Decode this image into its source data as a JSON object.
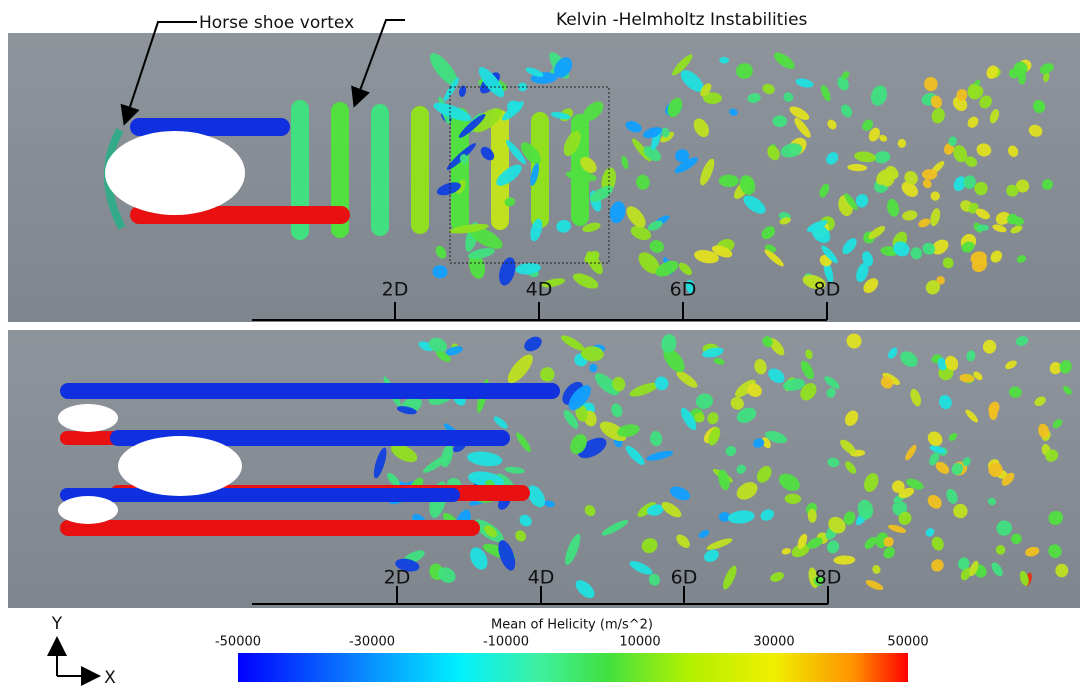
{
  "annotations": [
    "Horse shoe vortex",
    "Kelvin -Helmholtz Instabilities"
  ],
  "panels": [
    {
      "scale_labels": [
        "2D",
        "4D",
        "6D",
        "8D"
      ]
    },
    {
      "scale_labels": [
        "2D",
        "4D",
        "6D",
        "8D"
      ]
    }
  ],
  "colorbar": {
    "title": "Mean of Helicity (m/s^2)",
    "ticks": [
      -50000,
      -30000,
      -10000,
      10000,
      30000,
      50000
    ]
  },
  "axes": {
    "y": "Y",
    "x": "X"
  }
}
